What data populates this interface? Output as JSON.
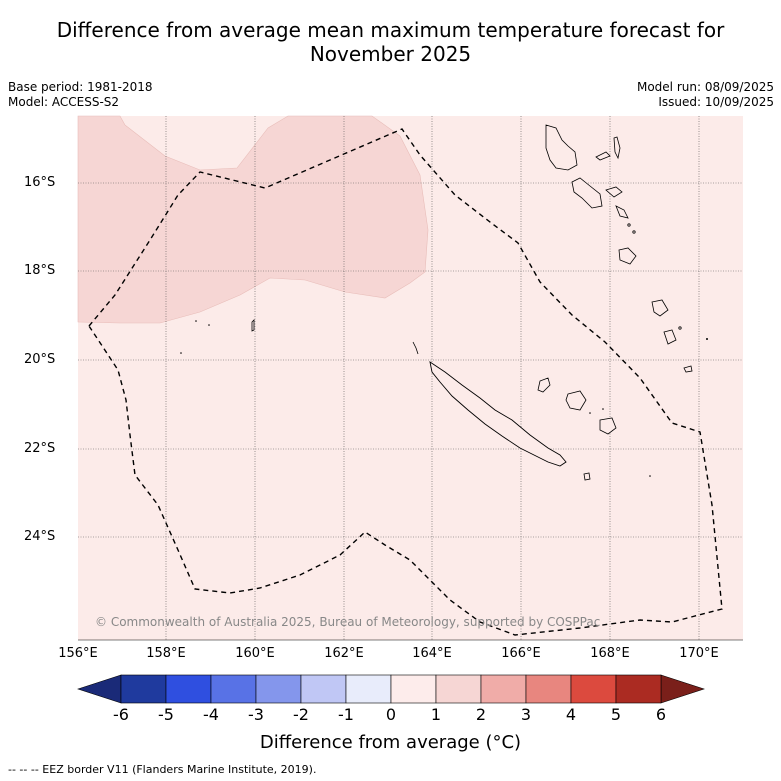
{
  "title_line1": "Difference from average mean maximum temperature forecast for",
  "title_line2": "November 2025",
  "meta_left": [
    "Base period: 1981-2018",
    "Model: ACCESS-S2"
  ],
  "meta_right": [
    "Model run: 08/09/2025",
    "Issued: 10/09/2025"
  ],
  "lat_labels": [
    "16°S",
    "18°S",
    "20°S",
    "22°S",
    "24°S"
  ],
  "lon_labels": [
    "156°E",
    "158°E",
    "160°E",
    "162°E",
    "164°E",
    "166°E",
    "168°E",
    "170°E"
  ],
  "copyright": "© Commonwealth of Australia 2025, Bureau of Meteorology, supported by COSPPac",
  "colorbar": {
    "ticks": [
      "-6",
      "-5",
      "-4",
      "-3",
      "-2",
      "-1",
      "0",
      "1",
      "2",
      "3",
      "4",
      "5",
      "6"
    ],
    "colors": [
      "#1f3a9e",
      "#2f4fe0",
      "#5872e6",
      "#8496ec",
      "#c0c7f5",
      "#e8ecfb",
      "#fdeceb",
      "#f6d6d4",
      "#f0aca8",
      "#e8867f",
      "#dc4a3e",
      "#ab2b22"
    ],
    "end_low": "#1a2a78",
    "end_high": "#7a1f1a",
    "title": "Difference from average (°C)"
  },
  "map_colors": {
    "background": "#fcebe9",
    "anomaly_1_2": "#f6d6d4"
  },
  "footer": "--  --  -- EEZ border V11 (Flanders Marine Institute, 2019)."
}
